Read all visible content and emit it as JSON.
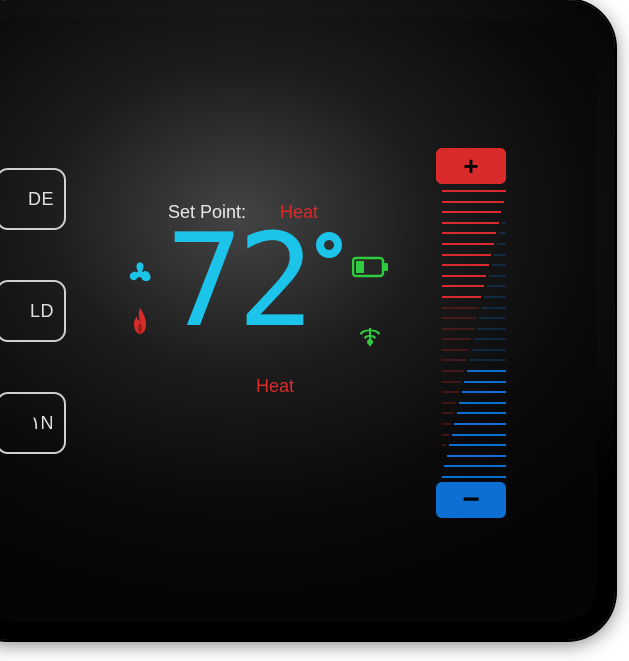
{
  "buttons": {
    "mode": "DE",
    "hold": "LD",
    "fan": "١N"
  },
  "display": {
    "setpoint_label": "Set Point:",
    "mode_top": "Heat",
    "temperature": "72",
    "mode_bottom": "Heat"
  },
  "slider": {
    "plus": "+",
    "minus": "−",
    "tick_count": 28,
    "heat_color": "#d92b2b",
    "cool_color": "#0d6fd1",
    "heat_position": 0.38,
    "cool_position": 0.62
  },
  "colors": {
    "cyan": "#1bc4e8",
    "red": "#d92b2b",
    "green": "#2fcc3f",
    "blue": "#0d6fd1",
    "white": "#e8e8e8"
  },
  "styling": {
    "temp_fontsize": 128,
    "label_fontsize": 18,
    "device_bg_inner": "#3a3a3a",
    "device_bg_outer": "#000000"
  }
}
